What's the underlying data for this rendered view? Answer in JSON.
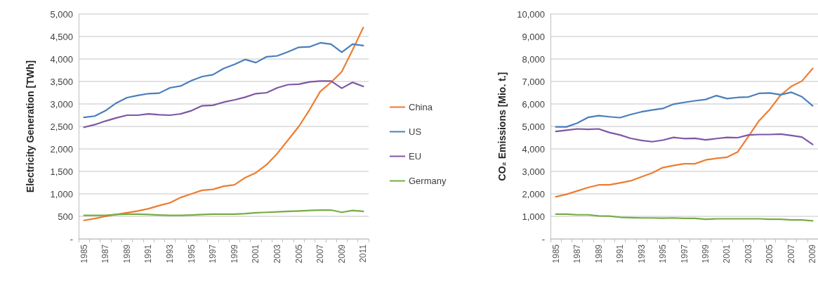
{
  "chart_data": [
    {
      "type": "line",
      "ylabel": "Electricity Generation [TWh]",
      "categories": [
        "1985",
        null,
        "1987",
        null,
        "1989",
        null,
        "1991",
        null,
        "1993",
        null,
        "1995",
        null,
        "1997",
        null,
        "1999",
        null,
        "2001",
        null,
        "2003",
        null,
        "2005",
        null,
        "2007",
        null,
        "2009",
        null,
        "2011"
      ],
      "series": [
        {
          "name": "China",
          "color": "#ed7d31",
          "values": [
            410,
            450,
            500,
            540,
            580,
            620,
            670,
            740,
            800,
            920,
            1000,
            1080,
            1100,
            1170,
            1200,
            1360,
            1470,
            1650,
            1900,
            2200,
            2500,
            2870,
            3280,
            3480,
            3720,
            4200,
            4700
          ]
        },
        {
          "name": "US",
          "color": "#4a7ebb",
          "values": [
            2700,
            2730,
            2850,
            3020,
            3140,
            3190,
            3230,
            3240,
            3360,
            3400,
            3520,
            3610,
            3650,
            3790,
            3880,
            3990,
            3920,
            4050,
            4070,
            4160,
            4260,
            4270,
            4360,
            4330,
            4150,
            4330,
            4300
          ]
        },
        {
          "name": "EU",
          "color": "#7e57a6",
          "values": [
            2480,
            2540,
            2620,
            2690,
            2750,
            2750,
            2780,
            2760,
            2750,
            2780,
            2850,
            2960,
            2970,
            3040,
            3090,
            3150,
            3230,
            3250,
            3360,
            3430,
            3440,
            3490,
            3510,
            3510,
            3350,
            3480,
            3390
          ]
        },
        {
          "name": "Germany",
          "color": "#77ac43",
          "values": [
            520,
            520,
            520,
            540,
            550,
            550,
            540,
            530,
            520,
            520,
            530,
            540,
            550,
            550,
            550,
            560,
            580,
            590,
            600,
            610,
            620,
            630,
            640,
            640,
            590,
            630,
            610
          ]
        }
      ],
      "ylim": [
        0,
        5000
      ],
      "yticks": [
        {
          "value": 0,
          "label": "-"
        },
        500,
        {
          "value": 1000,
          "label": "1,000"
        },
        {
          "value": 1500,
          "label": "1,500"
        },
        {
          "value": 2000,
          "label": "2,000"
        },
        {
          "value": 2500,
          "label": "2,500"
        },
        {
          "value": 3000,
          "label": "3,000"
        },
        {
          "value": 3500,
          "label": "3,500"
        },
        {
          "value": 4000,
          "label": "4,000"
        },
        {
          "value": 4500,
          "label": "4,500"
        },
        {
          "value": 5000,
          "label": "5,000"
        }
      ],
      "grid": "y",
      "legend": "right",
      "marker": "none",
      "line_style": "solid"
    },
    {
      "type": "line",
      "ylabel": "CO₂ Emissions [Mio. t.]",
      "categories": [
        "1985",
        null,
        "1987",
        null,
        "1989",
        null,
        "1991",
        null,
        "1993",
        null,
        "1995",
        null,
        "1997",
        null,
        "1999",
        null,
        "2001",
        null,
        "2003",
        null,
        "2005",
        null,
        "2007",
        null,
        "2009"
      ],
      "series": [
        {
          "color": "#ed7d31",
          "values": [
            1870,
            1980,
            2130,
            2280,
            2400,
            2400,
            2490,
            2580,
            2760,
            2930,
            3170,
            3260,
            3340,
            3340,
            3510,
            3580,
            3630,
            3870,
            4560,
            5260,
            5760,
            6390,
            6780,
            7020,
            7580
          ]
        },
        {
          "color": "#4a7ebb",
          "values": [
            4980,
            4980,
            5150,
            5400,
            5480,
            5430,
            5390,
            5530,
            5650,
            5730,
            5800,
            5990,
            6070,
            6140,
            6200,
            6370,
            6240,
            6290,
            6310,
            6470,
            6490,
            6410,
            6520,
            6320,
            5920
          ]
        },
        {
          "color": "#7e57a6",
          "values": [
            4780,
            4830,
            4890,
            4870,
            4890,
            4730,
            4620,
            4470,
            4380,
            4320,
            4390,
            4510,
            4460,
            4470,
            4400,
            4460,
            4510,
            4500,
            4620,
            4640,
            4640,
            4660,
            4600,
            4530,
            4200
          ]
        },
        {
          "color": "#77ac43",
          "values": [
            1100,
            1100,
            1070,
            1070,
            1020,
            1010,
            960,
            940,
            930,
            930,
            920,
            930,
            910,
            910,
            870,
            890,
            890,
            890,
            890,
            890,
            870,
            870,
            840,
            840,
            800
          ]
        }
      ],
      "ylim": [
        0,
        10000
      ],
      "yticks": [
        {
          "value": 0,
          "label": "-"
        },
        {
          "value": 1000,
          "label": "1,000"
        },
        {
          "value": 2000,
          "label": "2,000"
        },
        {
          "value": 3000,
          "label": "3,000"
        },
        {
          "value": 4000,
          "label": "4,000"
        },
        {
          "value": 5000,
          "label": "5,000"
        },
        {
          "value": 6000,
          "label": "6,000"
        },
        {
          "value": 7000,
          "label": "7,000"
        },
        {
          "value": 8000,
          "label": "8,000"
        },
        {
          "value": 9000,
          "label": "9,000"
        },
        {
          "value": 10000,
          "label": "10,000"
        }
      ],
      "grid": "y",
      "marker": "none",
      "line_style": "solid"
    }
  ]
}
